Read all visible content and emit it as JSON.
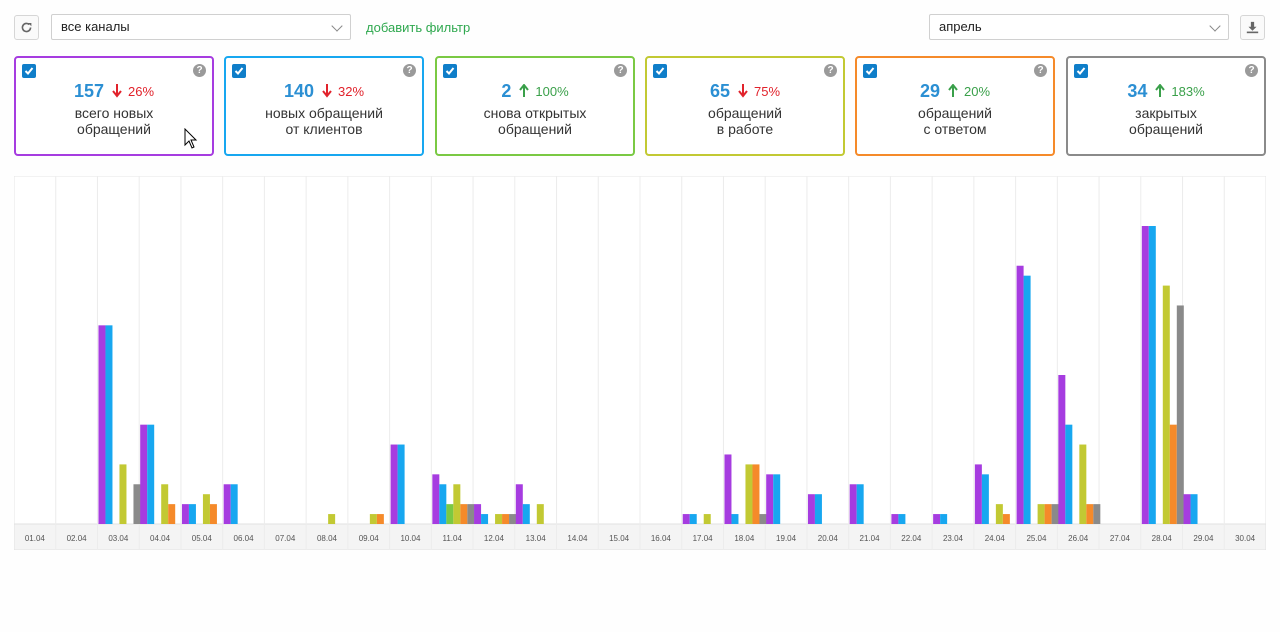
{
  "toolbar": {
    "channel_select": "все каналы",
    "add_filter": "добавить фильтр",
    "period_select": "апрель"
  },
  "cards": [
    {
      "number": "157",
      "delta": "26%",
      "direction": "down",
      "label": [
        "всего новых",
        "обращений"
      ],
      "color": "#a63ce0"
    },
    {
      "number": "140",
      "delta": "32%",
      "direction": "down",
      "label": [
        "новых обращений",
        "от клиентов"
      ],
      "color": "#17a7f0"
    },
    {
      "number": "2",
      "delta": "100%",
      "direction": "up",
      "label": [
        "снова открытых",
        "обращений"
      ],
      "color": "#7ac943"
    },
    {
      "number": "65",
      "delta": "75%",
      "direction": "down",
      "label": [
        "обращений",
        "в работе"
      ],
      "color": "#c2c933"
    },
    {
      "number": "29",
      "delta": "20%",
      "direction": "up",
      "label": [
        "обращений",
        "с ответом"
      ],
      "color": "#f58a2a"
    },
    {
      "number": "34",
      "delta": "183%",
      "direction": "up",
      "label": [
        "закрытых",
        "обращений"
      ],
      "color": "#8a8a8a"
    }
  ],
  "chart_data": {
    "type": "bar",
    "categories": [
      "01.04",
      "02.04",
      "03.04",
      "04.04",
      "05.04",
      "06.04",
      "07.04",
      "08.04",
      "09.04",
      "10.04",
      "11.04",
      "12.04",
      "13.04",
      "14.04",
      "15.04",
      "16.04",
      "17.04",
      "18.04",
      "19.04",
      "20.04",
      "21.04",
      "22.04",
      "23.04",
      "24.04",
      "25.04",
      "26.04",
      "27.04",
      "28.04",
      "29.04",
      "30.04"
    ],
    "series_colors": [
      "#a63ce0",
      "#17a7f0",
      "#7ac943",
      "#c2c933",
      "#f58a2a",
      "#8a8a8a"
    ],
    "series": [
      {
        "values": [
          0,
          0,
          20,
          10,
          2,
          4,
          0,
          0,
          0,
          8,
          5,
          2,
          4,
          0,
          0,
          0,
          1,
          7,
          5,
          3,
          4,
          1,
          1,
          6,
          26,
          15,
          0,
          30,
          3,
          0
        ]
      },
      {
        "values": [
          0,
          0,
          20,
          10,
          2,
          4,
          0,
          0,
          0,
          8,
          4,
          1,
          2,
          0,
          0,
          0,
          1,
          1,
          5,
          3,
          4,
          1,
          1,
          5,
          25,
          10,
          0,
          30,
          3,
          0
        ]
      },
      {
        "values": [
          0,
          0,
          0,
          0,
          0,
          0,
          0,
          0,
          0,
          0,
          2,
          0,
          0,
          0,
          0,
          0,
          0,
          0,
          0,
          0,
          0,
          0,
          0,
          0,
          0,
          0,
          0,
          0,
          0,
          0
        ]
      },
      {
        "values": [
          0,
          0,
          6,
          4,
          3,
          0,
          0,
          1,
          1,
          0,
          4,
          1,
          2,
          0,
          0,
          0,
          1,
          6,
          0,
          0,
          0,
          0,
          0,
          2,
          2,
          8,
          0,
          24,
          0,
          0
        ]
      },
      {
        "values": [
          0,
          0,
          0,
          2,
          2,
          0,
          0,
          0,
          1,
          0,
          2,
          1,
          0,
          0,
          0,
          0,
          0,
          6,
          0,
          0,
          0,
          0,
          0,
          1,
          2,
          2,
          0,
          10,
          0,
          0
        ]
      },
      {
        "values": [
          0,
          0,
          4,
          0,
          0,
          0,
          0,
          0,
          0,
          0,
          2,
          1,
          0,
          0,
          0,
          0,
          0,
          1,
          0,
          0,
          0,
          0,
          0,
          0,
          2,
          2,
          0,
          22,
          0,
          0
        ]
      }
    ],
    "ylim": [
      0,
      35
    ],
    "grid": true
  }
}
